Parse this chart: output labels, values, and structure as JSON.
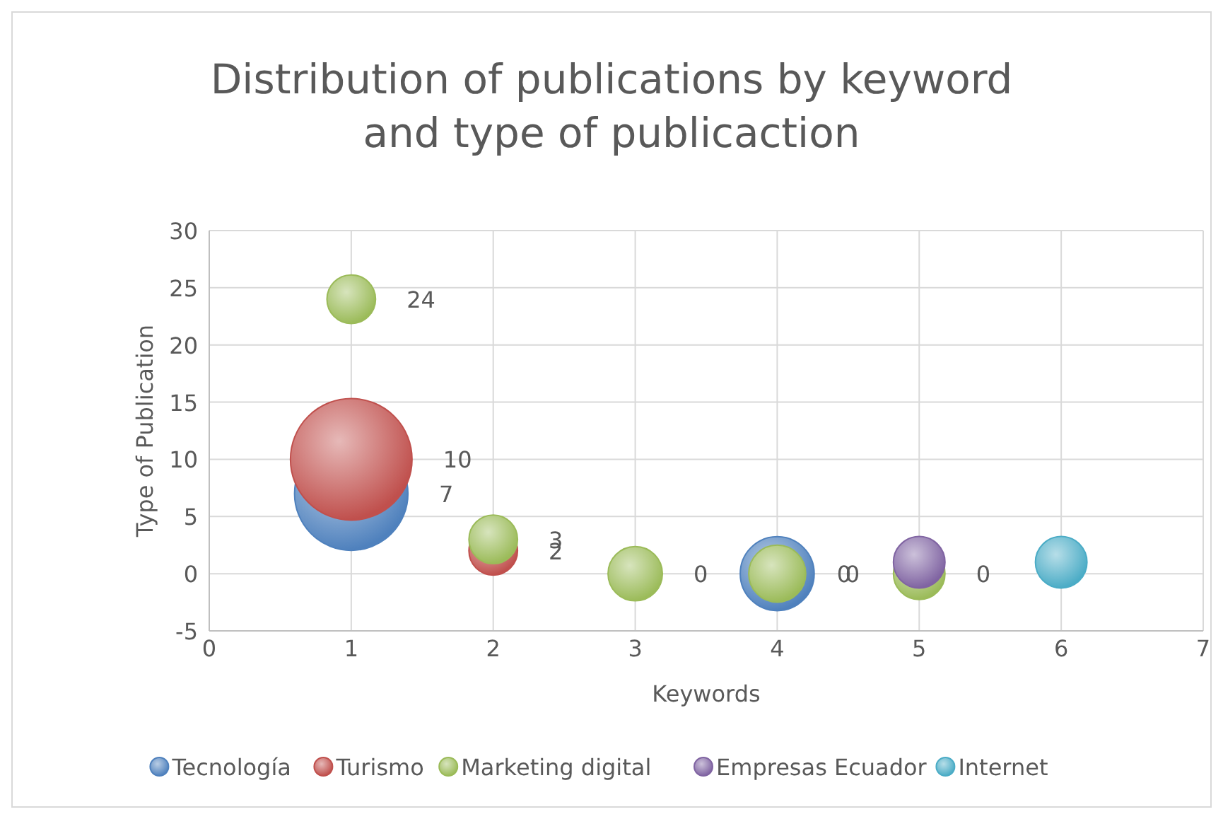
{
  "chart_data": {
    "type": "bubble",
    "title": "Distribution of publications by keyword and type of publicaction",
    "xlabel": "Keywords",
    "ylabel": "Type of Publication",
    "xlim": [
      0,
      7
    ],
    "xticks": [
      0,
      1,
      2,
      3,
      4,
      5,
      6,
      7
    ],
    "ylim": [
      -5,
      30
    ],
    "yticks": [
      -5,
      0,
      5,
      10,
      15,
      20,
      25,
      30
    ],
    "grid": true,
    "legend": "bottom",
    "marker": "circle",
    "series": [
      {
        "name": "Tecnología",
        "color": "#4f81bd",
        "x": [
          1,
          4
        ],
        "values": [
          7,
          0
        ],
        "sizes": [
          0.87,
          0.37
        ],
        "value_labels": [
          "7",
          "0"
        ]
      },
      {
        "name": "Turismo",
        "color": "#c0504d",
        "x": [
          1,
          2
        ],
        "values": [
          10,
          2
        ],
        "sizes": [
          1,
          0.16
        ],
        "value_labels": [
          "10",
          "2"
        ]
      },
      {
        "name": "Marketing digital",
        "color": "#9bbb59",
        "x": [
          1,
          2,
          3,
          4,
          5
        ],
        "values": [
          24,
          3,
          0,
          0,
          0
        ],
        "sizes": [
          0.16,
          0.16,
          0.2,
          0.22,
          0.18
        ],
        "value_labels": [
          "24",
          "3",
          "0",
          "0",
          "0"
        ]
      },
      {
        "name": "Empresas Ecuador",
        "color": "#8064a2",
        "x": [
          5
        ],
        "values": [
          1
        ],
        "sizes": [
          0.18
        ],
        "value_labels": [
          null
        ]
      },
      {
        "name": "Internet",
        "color": "#4bacc6",
        "x": [
          6
        ],
        "values": [
          1
        ],
        "sizes": [
          0.18
        ],
        "value_labels": [
          null
        ]
      }
    ]
  }
}
